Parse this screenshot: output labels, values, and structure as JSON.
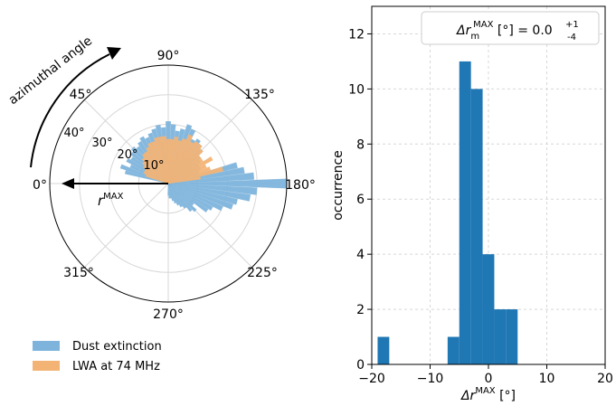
{
  "colors": {
    "dust": "#7eb4dc",
    "lwa": "#f3b375",
    "hist": "#1f77b4",
    "grid": "#d7d7d7",
    "axis": "#000000"
  },
  "polar": {
    "arc_label": "azimuthal angle",
    "arrow_label_base": "r",
    "arrow_label_sup": "MAX",
    "angle_labels": [
      "0°",
      "45°",
      "90°",
      "135°",
      "180°",
      "225°",
      "270°",
      "315°"
    ],
    "radial_labels": [
      "10°",
      "20°",
      "30°",
      "40°"
    ],
    "legend": [
      {
        "name": "Dust extinction",
        "color": "#7eb4dc"
      },
      {
        "name": "LWA at 74 MHz",
        "color": "#f3b375"
      }
    ]
  },
  "histogram": {
    "legend_text": "Δr_m^MAX [°] = 0.0 (+1/-4)",
    "legend_parts": {
      "lhs": "Δr",
      "sub": "m",
      "sup": "MAX",
      "unit": " [°] = 0.0 ",
      "plus": "+1",
      "minus": "-4"
    },
    "xlabel_base": "Δr",
    "xlabel_sup": "MAX",
    "xlabel_unit": " [°]",
    "ylabel": "occurrence",
    "x_ticks": [
      "−20",
      "−10",
      "0",
      "10",
      "20"
    ],
    "y_ticks": [
      "0",
      "2",
      "4",
      "6",
      "8",
      "10",
      "12"
    ]
  },
  "chart_data": [
    {
      "type": "bar",
      "subtype": "polar",
      "angle_ticks_deg": [
        0,
        45,
        90,
        135,
        180,
        225,
        270,
        315
      ],
      "radial_ticks_deg": [
        10,
        20,
        30,
        40
      ],
      "rlim": [
        0,
        40
      ],
      "series": [
        {
          "name": "Dust extinction",
          "angle_deg": [
            15,
            20,
            25,
            30,
            35,
            40,
            45,
            50,
            55,
            60,
            65,
            70,
            75,
            80,
            85,
            90,
            95,
            100,
            105,
            110,
            115,
            120,
            125,
            130,
            135,
            140,
            145,
            150,
            155,
            160,
            165,
            170,
            175,
            180,
            185,
            190,
            195,
            200,
            205,
            210,
            215,
            220,
            225,
            230,
            235,
            240,
            245,
            250,
            255,
            260,
            265,
            270
          ],
          "radius_deg": [
            15,
            17,
            14,
            16,
            15,
            16,
            17,
            16,
            17,
            18,
            17,
            18,
            19,
            20,
            19,
            21,
            20,
            18,
            19,
            21,
            20,
            17,
            18,
            17,
            16,
            14,
            13,
            12,
            12,
            11,
            24,
            26,
            29,
            40,
            30,
            28,
            24,
            23,
            20,
            17,
            16,
            11,
            13,
            12,
            10,
            9,
            8,
            7,
            6,
            5,
            5,
            4
          ]
        },
        {
          "name": "LWA at 74 MHz",
          "angle_deg": [
            20,
            25,
            30,
            35,
            40,
            45,
            50,
            55,
            60,
            65,
            70,
            75,
            80,
            85,
            90,
            95,
            100,
            105,
            110,
            115,
            120,
            125,
            130,
            135,
            140,
            145,
            150,
            155,
            160,
            165,
            170
          ],
          "radius_deg": [
            8,
            9,
            9,
            10,
            11,
            12,
            13,
            13,
            14,
            15,
            15,
            16,
            16,
            16,
            15,
            15,
            16,
            15,
            16,
            18,
            16,
            17,
            17,
            16,
            14,
            14,
            17,
            14,
            15,
            19,
            11
          ]
        }
      ]
    },
    {
      "type": "bar",
      "subtype": "histogram",
      "bin_edges": [
        -19,
        -17,
        -7,
        -5,
        -3,
        -1,
        1,
        3,
        5
      ],
      "counts": [
        1,
        0,
        1,
        11,
        10,
        4,
        2,
        2
      ],
      "bins": [
        {
          "x0": -19,
          "x1": -17,
          "count": 1
        },
        {
          "x0": -7,
          "x1": -5,
          "count": 1
        },
        {
          "x0": -5,
          "x1": -3,
          "count": 11
        },
        {
          "x0": -3,
          "x1": -1,
          "count": 10
        },
        {
          "x0": -1,
          "x1": 1,
          "count": 4
        },
        {
          "x0": 1,
          "x1": 3,
          "count": 2
        },
        {
          "x0": 3,
          "x1": 5,
          "count": 2
        }
      ],
      "xlim": [
        -20,
        20
      ],
      "ylim": [
        0,
        13
      ],
      "x_ticks": [
        -20,
        -10,
        0,
        10,
        20
      ],
      "y_ticks": [
        0,
        2,
        4,
        6,
        8,
        10,
        12
      ],
      "grid": true,
      "legend_placement": "top-right",
      "xlabel": "ΔrMAX [°]",
      "ylabel": "occurrence"
    }
  ]
}
